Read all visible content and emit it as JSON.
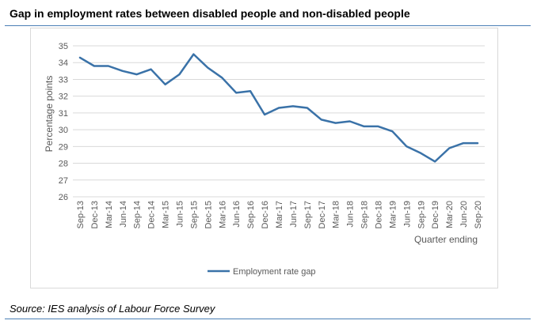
{
  "title": "Gap in employment rates between disabled people and non-disabled people",
  "source": "Source: IES analysis of Labour Force Survey",
  "colors": {
    "line": "#3a72a8",
    "rule": "#4a7fb5",
    "grid": "#d9d9d9",
    "text": "#595959"
  },
  "chart_data": {
    "type": "line",
    "title": "Gap in employment rates between disabled people and non-disabled people",
    "xlabel": "Quarter ending",
    "ylabel": "Percentage points",
    "ylim": [
      26,
      35
    ],
    "yticks": [
      26,
      27,
      28,
      29,
      30,
      31,
      32,
      33,
      34,
      35
    ],
    "grid": "horizontal",
    "legend": "bottom-center",
    "tick_labels": [
      "Sep-13",
      "Dec-13",
      "Mar-14",
      "Jun-14",
      "Sep-14",
      "Dec-14",
      "Mar-15",
      "Jun-15",
      "Sep-15",
      "Dec-15",
      "Mar-16",
      "Jun-16",
      "Sep-16",
      "Dec-16",
      "Mar-17",
      "Jun-17",
      "Sep-17",
      "Dec-17",
      "Mar-18",
      "Jun-18",
      "Sep-18",
      "Dec-18",
      "Mar-19",
      "Jun-19",
      "Sep-19",
      "Dec-19",
      "Mar-20",
      "Jun-20",
      "Sep-20"
    ],
    "series": [
      {
        "name": "Employment rate gap",
        "values": [
          34.3,
          33.8,
          33.8,
          33.5,
          33.3,
          33.6,
          32.7,
          33.3,
          34.5,
          33.7,
          33.1,
          32.2,
          32.3,
          30.9,
          31.3,
          31.4,
          31.3,
          30.6,
          30.4,
          30.5,
          30.2,
          30.2,
          29.9,
          29.0,
          28.6,
          28.1,
          28.9,
          29.2,
          29.2
        ]
      }
    ]
  }
}
